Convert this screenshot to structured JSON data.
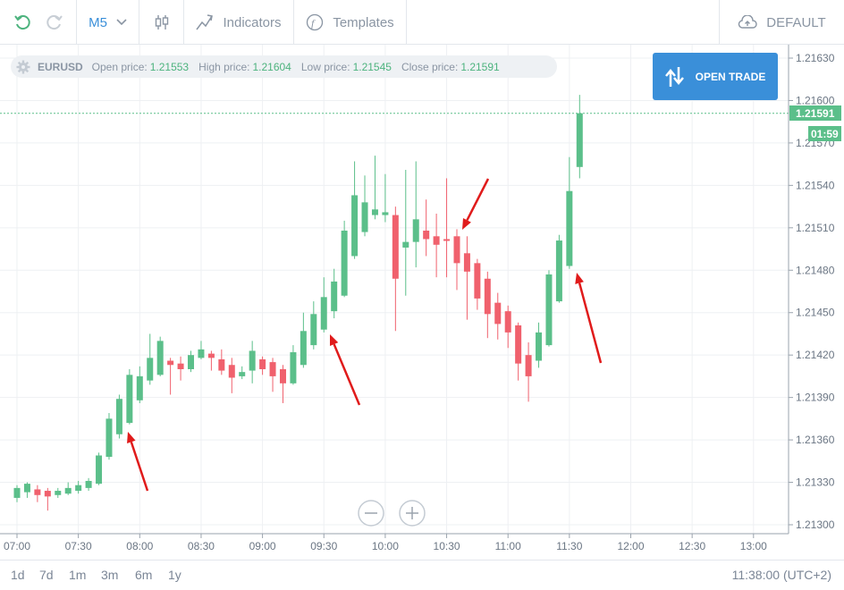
{
  "toolbar": {
    "timeframe": "M5",
    "indicators_label": "Indicators",
    "templates_label": "Templates",
    "default_label": "DEFAULT"
  },
  "info": {
    "symbol": "EURUSD",
    "open_label": "Open price:",
    "open_value": "1.21553",
    "high_label": "High price:",
    "high_value": "1.21604",
    "low_label": "Low price:",
    "low_value": "1.21545",
    "close_label": "Close price:",
    "close_value": "1.21591"
  },
  "open_trade_label": "OPEN TRADE",
  "bottom": {
    "periods": [
      "1d",
      "7d",
      "1m",
      "3m",
      "6m",
      "1y"
    ],
    "clock": "11:38:00 (UTC+2)"
  },
  "colors": {
    "up": "#5bbf8a",
    "down": "#f0616d",
    "accent": "#3a8fd9",
    "arrow": "#e01b1b"
  },
  "chart_data": {
    "type": "candlestick",
    "x_ticks": [
      "07:00",
      "07:30",
      "08:00",
      "08:30",
      "09:00",
      "09:30",
      "10:00",
      "10:30",
      "11:00",
      "11:30",
      "12:00",
      "12:30",
      "13:00"
    ],
    "y_ticks": [
      "1.21630",
      "1.21600",
      "1.21570",
      "1.21540",
      "1.21510",
      "1.21480",
      "1.21450",
      "1.21420",
      "1.21390",
      "1.21360",
      "1.21330",
      "1.21300"
    ],
    "ylim": [
      1.213,
      1.2163
    ],
    "current_price_label": "1.21591",
    "countdown_label": "01:59",
    "candles": [
      {
        "t": "07:00",
        "o": 1.21319,
        "h": 1.21328,
        "l": 1.21316,
        "c": 1.21326
      },
      {
        "t": "07:05",
        "o": 1.21323,
        "h": 1.2133,
        "l": 1.21319,
        "c": 1.21329
      },
      {
        "t": "07:10",
        "o": 1.21325,
        "h": 1.21328,
        "l": 1.21316,
        "c": 1.21321
      },
      {
        "t": "07:15",
        "o": 1.21324,
        "h": 1.21326,
        "l": 1.2131,
        "c": 1.2132
      },
      {
        "t": "07:20",
        "o": 1.21321,
        "h": 1.21326,
        "l": 1.21319,
        "c": 1.21324
      },
      {
        "t": "07:25",
        "o": 1.21322,
        "h": 1.2133,
        "l": 1.21321,
        "c": 1.21326
      },
      {
        "t": "07:30",
        "o": 1.21324,
        "h": 1.21331,
        "l": 1.21322,
        "c": 1.21328
      },
      {
        "t": "07:35",
        "o": 1.21326,
        "h": 1.21333,
        "l": 1.21324,
        "c": 1.21331
      },
      {
        "t": "07:40",
        "o": 1.21329,
        "h": 1.21351,
        "l": 1.21328,
        "c": 1.21349
      },
      {
        "t": "07:45",
        "o": 1.21348,
        "h": 1.21379,
        "l": 1.21346,
        "c": 1.21375
      },
      {
        "t": "07:50",
        "o": 1.21364,
        "h": 1.21392,
        "l": 1.21361,
        "c": 1.21389
      },
      {
        "t": "07:55",
        "o": 1.21372,
        "h": 1.2141,
        "l": 1.21371,
        "c": 1.21406
      },
      {
        "t": "08:00",
        "o": 1.21388,
        "h": 1.21412,
        "l": 1.21386,
        "c": 1.21405
      },
      {
        "t": "08:05",
        "o": 1.21402,
        "h": 1.21435,
        "l": 1.21399,
        "c": 1.21418
      },
      {
        "t": "08:10",
        "o": 1.21406,
        "h": 1.21433,
        "l": 1.21405,
        "c": 1.2143
      },
      {
        "t": "08:15",
        "o": 1.21416,
        "h": 1.21418,
        "l": 1.21392,
        "c": 1.21413
      },
      {
        "t": "08:20",
        "o": 1.21414,
        "h": 1.21419,
        "l": 1.21402,
        "c": 1.2141
      },
      {
        "t": "08:25",
        "o": 1.2141,
        "h": 1.21423,
        "l": 1.21408,
        "c": 1.2142
      },
      {
        "t": "08:30",
        "o": 1.21418,
        "h": 1.2143,
        "l": 1.21417,
        "c": 1.21424
      },
      {
        "t": "08:35",
        "o": 1.21421,
        "h": 1.21423,
        "l": 1.21409,
        "c": 1.21418
      },
      {
        "t": "08:40",
        "o": 1.21417,
        "h": 1.21424,
        "l": 1.21406,
        "c": 1.21409
      },
      {
        "t": "08:45",
        "o": 1.21413,
        "h": 1.21418,
        "l": 1.21393,
        "c": 1.21404
      },
      {
        "t": "08:50",
        "o": 1.21405,
        "h": 1.21412,
        "l": 1.21403,
        "c": 1.21408
      },
      {
        "t": "08:55",
        "o": 1.21409,
        "h": 1.2143,
        "l": 1.214,
        "c": 1.21423
      },
      {
        "t": "09:00",
        "o": 1.21417,
        "h": 1.21419,
        "l": 1.21406,
        "c": 1.2141
      },
      {
        "t": "09:05",
        "o": 1.21415,
        "h": 1.21418,
        "l": 1.21394,
        "c": 1.21405
      },
      {
        "t": "09:10",
        "o": 1.2141,
        "h": 1.21413,
        "l": 1.21386,
        "c": 1.214
      },
      {
        "t": "09:15",
        "o": 1.214,
        "h": 1.21427,
        "l": 1.21399,
        "c": 1.21422
      },
      {
        "t": "09:20",
        "o": 1.21413,
        "h": 1.2145,
        "l": 1.21411,
        "c": 1.21437
      },
      {
        "t": "09:25",
        "o": 1.21427,
        "h": 1.21458,
        "l": 1.21424,
        "c": 1.21449
      },
      {
        "t": "09:30",
        "o": 1.21438,
        "h": 1.21475,
        "l": 1.21436,
        "c": 1.21461
      },
      {
        "t": "09:35",
        "o": 1.21451,
        "h": 1.21481,
        "l": 1.21446,
        "c": 1.21472
      },
      {
        "t": "09:40",
        "o": 1.21462,
        "h": 1.21515,
        "l": 1.21461,
        "c": 1.21508
      },
      {
        "t": "09:45",
        "o": 1.2149,
        "h": 1.21557,
        "l": 1.21488,
        "c": 1.21533
      },
      {
        "t": "09:50",
        "o": 1.21507,
        "h": 1.21547,
        "l": 1.21504,
        "c": 1.21528
      },
      {
        "t": "09:55",
        "o": 1.21519,
        "h": 1.21561,
        "l": 1.21516,
        "c": 1.21523
      },
      {
        "t": "10:00",
        "o": 1.21519,
        "h": 1.21548,
        "l": 1.21514,
        "c": 1.21521
      },
      {
        "t": "10:05",
        "o": 1.21519,
        "h": 1.21525,
        "l": 1.21437,
        "c": 1.21474
      },
      {
        "t": "10:10",
        "o": 1.21496,
        "h": 1.21551,
        "l": 1.21462,
        "c": 1.215
      },
      {
        "t": "10:15",
        "o": 1.215,
        "h": 1.21557,
        "l": 1.21482,
        "c": 1.21516
      },
      {
        "t": "10:20",
        "o": 1.21508,
        "h": 1.2153,
        "l": 1.2149,
        "c": 1.21502
      },
      {
        "t": "10:25",
        "o": 1.21504,
        "h": 1.2152,
        "l": 1.21475,
        "c": 1.21498
      },
      {
        "t": "10:30",
        "o": 1.21502,
        "h": 1.21545,
        "l": 1.21475,
        "c": 1.21501
      },
      {
        "t": "10:35",
        "o": 1.21504,
        "h": 1.21509,
        "l": 1.21466,
        "c": 1.21485
      },
      {
        "t": "10:40",
        "o": 1.21492,
        "h": 1.21504,
        "l": 1.21445,
        "c": 1.21479
      },
      {
        "t": "10:45",
        "o": 1.21485,
        "h": 1.21488,
        "l": 1.21452,
        "c": 1.2146
      },
      {
        "t": "10:50",
        "o": 1.21474,
        "h": 1.21479,
        "l": 1.21432,
        "c": 1.21449
      },
      {
        "t": "10:55",
        "o": 1.21457,
        "h": 1.21464,
        "l": 1.21431,
        "c": 1.21442
      },
      {
        "t": "11:00",
        "o": 1.21451,
        "h": 1.21455,
        "l": 1.21425,
        "c": 1.21436
      },
      {
        "t": "11:05",
        "o": 1.21441,
        "h": 1.21443,
        "l": 1.21402,
        "c": 1.21414
      },
      {
        "t": "11:10",
        "o": 1.2142,
        "h": 1.21429,
        "l": 1.21387,
        "c": 1.21405
      },
      {
        "t": "11:15",
        "o": 1.21416,
        "h": 1.21443,
        "l": 1.21411,
        "c": 1.21436
      },
      {
        "t": "11:20",
        "o": 1.21427,
        "h": 1.2148,
        "l": 1.21426,
        "c": 1.21477
      },
      {
        "t": "11:25",
        "o": 1.21458,
        "h": 1.21505,
        "l": 1.21457,
        "c": 1.21501
      },
      {
        "t": "11:30",
        "o": 1.21483,
        "h": 1.2156,
        "l": 1.21481,
        "c": 1.21536
      },
      {
        "t": "11:35",
        "o": 1.21553,
        "h": 1.21604,
        "l": 1.21545,
        "c": 1.21591
      }
    ]
  }
}
